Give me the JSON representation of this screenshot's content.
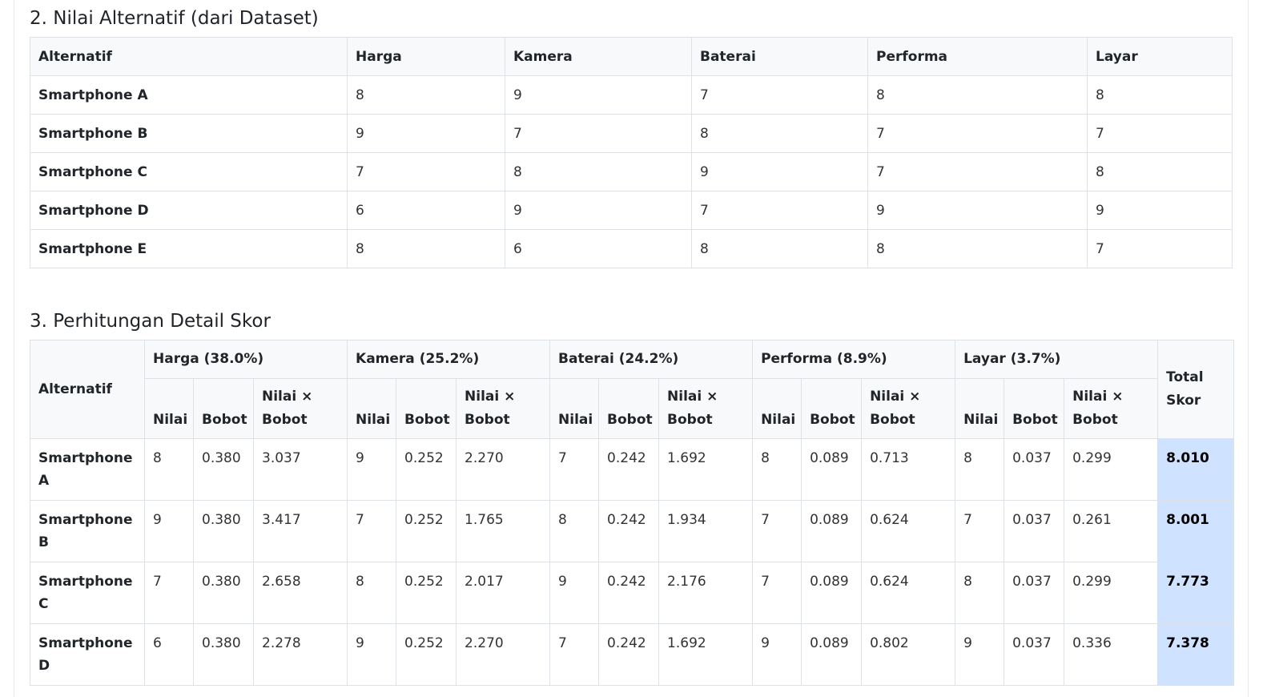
{
  "section2": {
    "title": "2. Nilai Alternatif (dari Dataset)",
    "headers": [
      "Alternatif",
      "Harga",
      "Kamera",
      "Baterai",
      "Performa",
      "Layar"
    ],
    "rows": [
      {
        "name": "Smartphone A",
        "values": [
          "8",
          "9",
          "7",
          "8",
          "8"
        ]
      },
      {
        "name": "Smartphone B",
        "values": [
          "9",
          "7",
          "8",
          "7",
          "7"
        ]
      },
      {
        "name": "Smartphone C",
        "values": [
          "7",
          "8",
          "9",
          "7",
          "8"
        ]
      },
      {
        "name": "Smartphone D",
        "values": [
          "6",
          "9",
          "7",
          "9",
          "9"
        ]
      },
      {
        "name": "Smartphone E",
        "values": [
          "8",
          "6",
          "8",
          "8",
          "7"
        ]
      }
    ]
  },
  "section3": {
    "title": "3. Perhitungan Detail Skor",
    "alt_header": "Alternatif",
    "total_header": "Total Skor",
    "groups": [
      "Harga (38.0%)",
      "Kamera (25.2%)",
      "Baterai (24.2%)",
      "Performa (8.9%)",
      "Layar (3.7%)"
    ],
    "sub_headers": [
      "Nilai",
      "Bobot",
      "Nilai × Bobot"
    ],
    "rows": [
      {
        "name": "Smartphone A",
        "cells": [
          [
            "8",
            "0.380",
            "3.037"
          ],
          [
            "9",
            "0.252",
            "2.270"
          ],
          [
            "7",
            "0.242",
            "1.692"
          ],
          [
            "8",
            "0.089",
            "0.713"
          ],
          [
            "8",
            "0.037",
            "0.299"
          ]
        ],
        "total": "8.010"
      },
      {
        "name": "Smartphone B",
        "cells": [
          [
            "9",
            "0.380",
            "3.417"
          ],
          [
            "7",
            "0.252",
            "1.765"
          ],
          [
            "8",
            "0.242",
            "1.934"
          ],
          [
            "7",
            "0.089",
            "0.624"
          ],
          [
            "7",
            "0.037",
            "0.261"
          ]
        ],
        "total": "8.001"
      },
      {
        "name": "Smartphone C",
        "cells": [
          [
            "7",
            "0.380",
            "2.658"
          ],
          [
            "8",
            "0.252",
            "2.017"
          ],
          [
            "9",
            "0.242",
            "2.176"
          ],
          [
            "7",
            "0.089",
            "0.624"
          ],
          [
            "8",
            "0.037",
            "0.299"
          ]
        ],
        "total": "7.773"
      },
      {
        "name": "Smartphone D",
        "cells": [
          [
            "6",
            "0.380",
            "2.278"
          ],
          [
            "9",
            "0.252",
            "2.270"
          ],
          [
            "7",
            "0.242",
            "1.692"
          ],
          [
            "9",
            "0.089",
            "0.802"
          ],
          [
            "9",
            "0.037",
            "0.336"
          ]
        ],
        "total": "7.378"
      }
    ]
  },
  "colors": {
    "header_bg": "#f8f9fa",
    "border": "#dee2e6",
    "total_highlight": "#cfe2ff"
  }
}
